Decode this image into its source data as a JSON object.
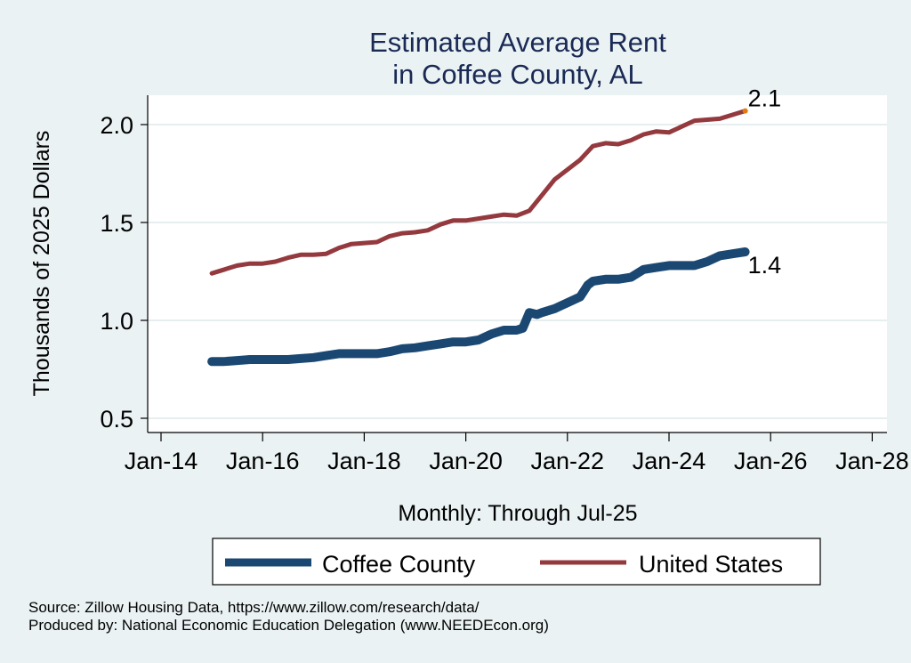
{
  "chart_data": {
    "type": "line",
    "title": [
      "Estimated Average Rent",
      "in Coffee County, AL"
    ],
    "xlabel": "Monthly: Through Jul-25",
    "ylabel": "Thousands of 2025 Dollars",
    "x_ticks": [
      {
        "label": "Jan-14",
        "year": 2014.0
      },
      {
        "label": "Jan-16",
        "year": 2016.0
      },
      {
        "label": "Jan-18",
        "year": 2018.0
      },
      {
        "label": "Jan-20",
        "year": 2020.0
      },
      {
        "label": "Jan-22",
        "year": 2022.0
      },
      {
        "label": "Jan-24",
        "year": 2024.0
      },
      {
        "label": "Jan-26",
        "year": 2026.0
      },
      {
        "label": "Jan-28",
        "year": 2028.0
      }
    ],
    "y_ticks": [
      {
        "label": "0.5",
        "value": 0.5
      },
      {
        "label": "1.0",
        "value": 1.0
      },
      {
        "label": "1.5",
        "value": 1.5
      },
      {
        "label": "2.0",
        "value": 2.0
      }
    ],
    "xlim": [
      2013.75,
      2028.3
    ],
    "ylim": [
      0.47,
      2.15
    ],
    "grid": true,
    "legend_position": "bottom",
    "series": [
      {
        "name": "Coffee County",
        "color": "#1b4872",
        "x": [
          2015.0,
          2015.25,
          2015.5,
          2015.75,
          2016.0,
          2016.25,
          2016.5,
          2016.75,
          2017.0,
          2017.25,
          2017.5,
          2017.75,
          2018.0,
          2018.25,
          2018.5,
          2018.75,
          2019.0,
          2019.25,
          2019.5,
          2019.75,
          2020.0,
          2020.25,
          2020.5,
          2020.75,
          2021.0,
          2021.12,
          2021.25,
          2021.4,
          2021.5,
          2021.75,
          2022.0,
          2022.25,
          2022.4,
          2022.5,
          2022.75,
          2023.0,
          2023.25,
          2023.5,
          2023.75,
          2024.0,
          2024.25,
          2024.5,
          2024.75,
          2025.0,
          2025.25,
          2025.5
        ],
        "values": [
          0.79,
          0.79,
          0.795,
          0.8,
          0.8,
          0.8,
          0.8,
          0.805,
          0.81,
          0.82,
          0.83,
          0.83,
          0.83,
          0.83,
          0.84,
          0.855,
          0.86,
          0.87,
          0.88,
          0.89,
          0.89,
          0.9,
          0.93,
          0.95,
          0.95,
          0.96,
          1.04,
          1.03,
          1.04,
          1.06,
          1.09,
          1.12,
          1.18,
          1.2,
          1.21,
          1.21,
          1.22,
          1.26,
          1.27,
          1.28,
          1.28,
          1.28,
          1.3,
          1.33,
          1.34,
          1.35
        ]
      },
      {
        "name": "United States",
        "color": "#943a3f",
        "x": [
          2015.0,
          2015.25,
          2015.5,
          2015.75,
          2016.0,
          2016.25,
          2016.5,
          2016.75,
          2017.0,
          2017.25,
          2017.5,
          2017.75,
          2018.0,
          2018.25,
          2018.5,
          2018.75,
          2019.0,
          2019.25,
          2019.5,
          2019.75,
          2020.0,
          2020.25,
          2020.5,
          2020.75,
          2021.0,
          2021.25,
          2021.5,
          2021.75,
          2022.0,
          2022.25,
          2022.5,
          2022.75,
          2023.0,
          2023.25,
          2023.5,
          2023.75,
          2024.0,
          2024.25,
          2024.5,
          2024.75,
          2025.0,
          2025.25,
          2025.5
        ],
        "values": [
          1.24,
          1.26,
          1.28,
          1.29,
          1.29,
          1.3,
          1.32,
          1.335,
          1.335,
          1.34,
          1.37,
          1.39,
          1.395,
          1.4,
          1.43,
          1.445,
          1.45,
          1.46,
          1.49,
          1.51,
          1.51,
          1.52,
          1.53,
          1.54,
          1.535,
          1.56,
          1.64,
          1.72,
          1.77,
          1.82,
          1.89,
          1.905,
          1.9,
          1.92,
          1.95,
          1.965,
          1.96,
          1.99,
          2.02,
          2.025,
          2.03,
          2.05,
          2.07
        ]
      }
    ],
    "annotations": [
      {
        "series": "United States",
        "label": "2.1",
        "marker_color": "#e07d10"
      },
      {
        "series": "Coffee County",
        "label": "1.4"
      }
    ],
    "legend": [
      "Coffee County",
      "United States"
    ],
    "notes": [
      "Source: Zillow Housing Data, https://www.zillow.com/research/data/",
      "Produced by: National Economic Education Delegation (www.NEEDEcon.org)"
    ]
  }
}
